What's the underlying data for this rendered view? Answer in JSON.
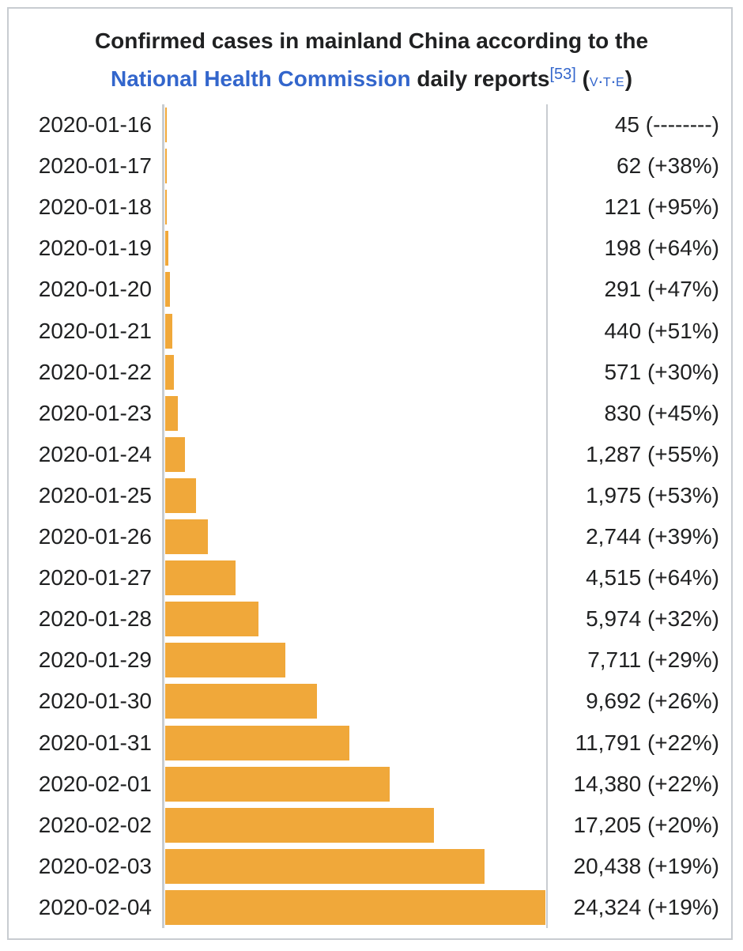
{
  "title": {
    "line1": "Confirmed cases in mainland China according to the",
    "link": "National Health Commission",
    "rest": " daily reports",
    "ref": "[53]",
    "nav": {
      "open": "(",
      "v": "V",
      "sep1": "·",
      "t": "T",
      "sep2": "·",
      "e": "E",
      "close": ")"
    }
  },
  "chart_data": {
    "type": "bar",
    "orientation": "horizontal",
    "title": "Confirmed cases in mainland China according to the National Health Commission daily reports",
    "bar_color": "#f0a83a",
    "categories": [
      "2020-01-16",
      "2020-01-17",
      "2020-01-18",
      "2020-01-19",
      "2020-01-20",
      "2020-01-21",
      "2020-01-22",
      "2020-01-23",
      "2020-01-24",
      "2020-01-25",
      "2020-01-26",
      "2020-01-27",
      "2020-01-28",
      "2020-01-29",
      "2020-01-30",
      "2020-01-31",
      "2020-02-01",
      "2020-02-02",
      "2020-02-03",
      "2020-02-04"
    ],
    "values": [
      45,
      62,
      121,
      198,
      291,
      440,
      571,
      830,
      1287,
      1975,
      2744,
      4515,
      5974,
      7711,
      9692,
      11791,
      14380,
      17205,
      20438,
      24324
    ],
    "labels": [
      "45 (--------)",
      "62 (+38%)",
      "121 (+95%)",
      "198 (+64%)",
      "291 (+47%)",
      "440 (+51%)",
      "571 (+30%)",
      "830 (+45%)",
      "1,287 (+55%)",
      "1,975 (+53%)",
      "2,744 (+39%)",
      "4,515 (+64%)",
      "5,974 (+32%)",
      "7,711 (+29%)",
      "9,692 (+26%)",
      "11,791 (+22%)",
      "14,380 (+22%)",
      "17,205 (+20%)",
      "20,438 (+19%)",
      "24,324 (+19%)"
    ]
  }
}
